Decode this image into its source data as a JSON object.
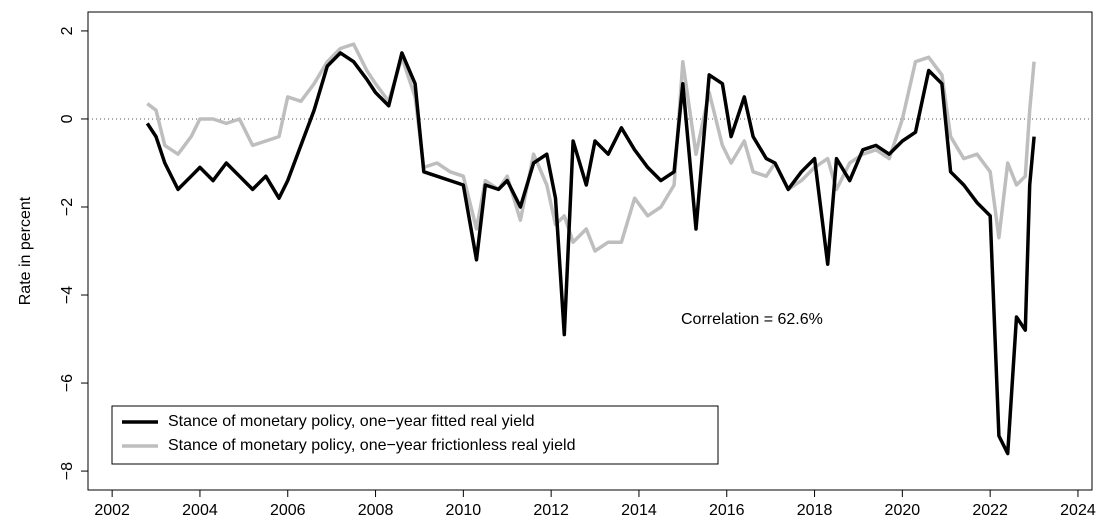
{
  "chart_data": {
    "type": "line",
    "ylabel": "Rate in percent",
    "annotation": "Correlation = 62.6%",
    "x": [
      2002.8,
      2003.0,
      2003.2,
      2003.5,
      2003.8,
      2004.0,
      2004.3,
      2004.6,
      2004.9,
      2005.2,
      2005.5,
      2005.8,
      2006.0,
      2006.3,
      2006.6,
      2006.9,
      2007.2,
      2007.5,
      2007.8,
      2008.0,
      2008.3,
      2008.6,
      2008.9,
      2009.1,
      2009.4,
      2009.7,
      2010.0,
      2010.3,
      2010.5,
      2010.8,
      2011.0,
      2011.3,
      2011.6,
      2011.9,
      2012.1,
      2012.3,
      2012.5,
      2012.8,
      2013.0,
      2013.3,
      2013.6,
      2013.9,
      2014.2,
      2014.5,
      2014.8,
      2015.0,
      2015.3,
      2015.6,
      2015.9,
      2016.1,
      2016.4,
      2016.6,
      2016.9,
      2017.1,
      2017.4,
      2017.7,
      2018.0,
      2018.3,
      2018.5,
      2018.8,
      2019.1,
      2019.4,
      2019.7,
      2020.0,
      2020.3,
      2020.6,
      2020.9,
      2021.1,
      2021.4,
      2021.7,
      2022.0,
      2022.2,
      2022.4,
      2022.6,
      2022.8,
      2022.9,
      2023.0
    ],
    "series": [
      {
        "name": "Stance of monetary policy, one−year fitted real yield",
        "color": "#000000",
        "values": [
          -0.1,
          -0.4,
          -1.0,
          -1.6,
          -1.3,
          -1.1,
          -1.4,
          -1.0,
          -1.3,
          -1.6,
          -1.3,
          -1.8,
          -1.4,
          -0.6,
          0.2,
          1.2,
          1.5,
          1.3,
          0.9,
          0.6,
          0.3,
          1.5,
          0.8,
          -1.2,
          -1.3,
          -1.4,
          -1.5,
          -3.2,
          -1.5,
          -1.6,
          -1.4,
          -2.0,
          -1.0,
          -0.8,
          -1.8,
          -4.9,
          -0.5,
          -1.5,
          -0.5,
          -0.8,
          -0.2,
          -0.7,
          -1.1,
          -1.4,
          -1.2,
          0.8,
          -2.5,
          1.0,
          0.8,
          -0.4,
          0.5,
          -0.4,
          -0.9,
          -1.0,
          -1.6,
          -1.2,
          -0.9,
          -3.3,
          -0.9,
          -1.4,
          -0.7,
          -0.6,
          -0.8,
          -0.5,
          -0.3,
          1.1,
          0.8,
          -1.2,
          -1.5,
          -1.9,
          -2.2,
          -7.2,
          -7.6,
          -4.5,
          -4.8,
          -1.5,
          -0.4
        ]
      },
      {
        "name": "Stance of monetary policy, one−year frictionless real yield",
        "color": "#bebebe",
        "values": [
          0.35,
          0.2,
          -0.6,
          -0.8,
          -0.4,
          0.0,
          0.0,
          -0.1,
          0.0,
          -0.6,
          -0.5,
          -0.4,
          0.5,
          0.4,
          0.8,
          1.3,
          1.6,
          1.7,
          1.1,
          0.8,
          0.4,
          1.4,
          0.5,
          -1.1,
          -1.0,
          -1.2,
          -1.3,
          -2.5,
          -1.4,
          -1.6,
          -1.3,
          -2.3,
          -0.8,
          -1.5,
          -2.4,
          -2.2,
          -2.8,
          -2.5,
          -3.0,
          -2.8,
          -2.8,
          -1.8,
          -2.2,
          -2.0,
          -1.5,
          1.3,
          -0.8,
          0.6,
          -0.6,
          -1.0,
          -0.5,
          -1.2,
          -1.3,
          -1.0,
          -1.6,
          -1.4,
          -1.1,
          -0.9,
          -1.6,
          -1.0,
          -0.8,
          -0.7,
          -0.9,
          0.0,
          1.3,
          1.4,
          1.0,
          -0.4,
          -0.9,
          -0.8,
          -1.2,
          -2.7,
          -1.0,
          -1.5,
          -1.3,
          0.2,
          1.3
        ]
      }
    ],
    "xlim": [
      2001.45,
      2024.32
    ],
    "xticks": [
      2002,
      2004,
      2006,
      2008,
      2010,
      2012,
      2014,
      2016,
      2018,
      2020,
      2022,
      2024
    ],
    "ylim": [
      -8.43,
      2.43
    ],
    "yticks": [
      {
        "value": -8,
        "label": "−8"
      },
      {
        "value": -6,
        "label": "−6"
      },
      {
        "value": -4,
        "label": "−4"
      },
      {
        "value": -2,
        "label": "−2"
      },
      0,
      2
    ],
    "reference_line": 0,
    "legend": "bottom-left"
  }
}
